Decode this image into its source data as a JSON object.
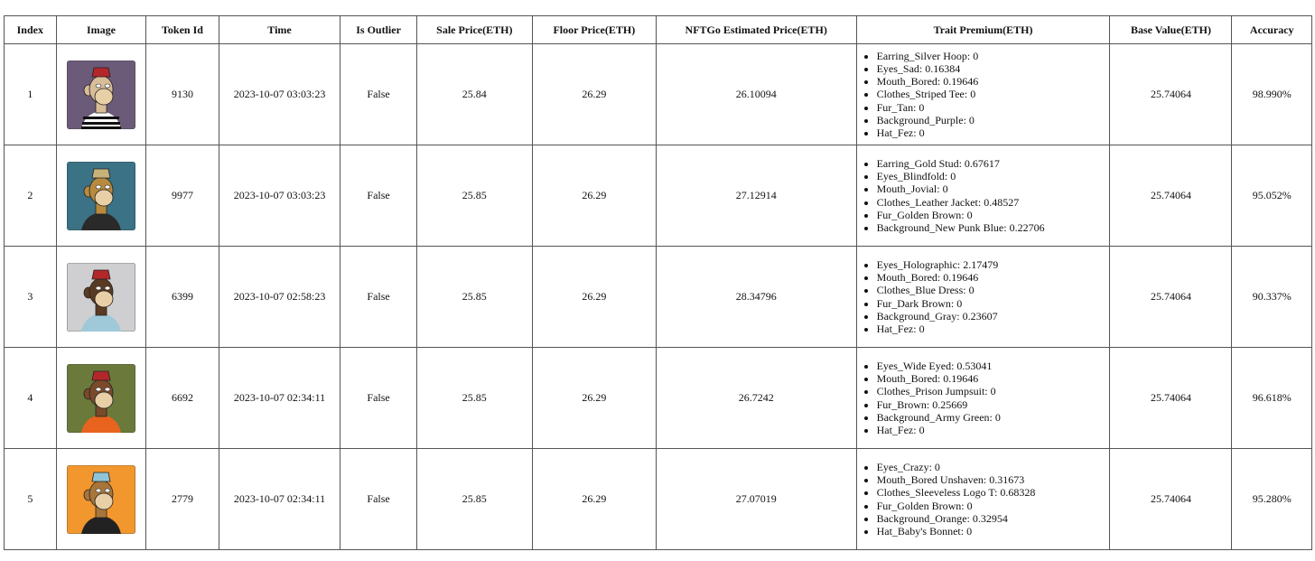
{
  "columns": [
    "Index",
    "Image",
    "Token Id",
    "Time",
    "Is Outlier",
    "Sale Price(ETH)",
    "Floor Price(ETH)",
    "NFTGo Estimated Price(ETH)",
    "Trait Premium(ETH)",
    "Base Value(ETH)",
    "Accuracy"
  ],
  "rows": [
    {
      "index": "1",
      "image": {
        "background": "#6b5a78",
        "fur": "#d9bd98",
        "hat": "#b3272a",
        "clothes": "stripes"
      },
      "token_id": "9130",
      "time": "2023-10-07 03:03:23",
      "is_outlier": "False",
      "sale_price": "25.84",
      "floor_price": "26.29",
      "estimated_price": "26.10094",
      "traits": [
        "Earring_Silver Hoop: 0",
        "Eyes_Sad: 0.16384",
        "Mouth_Bored: 0.19646",
        "Clothes_Striped Tee: 0",
        "Fur_Tan: 0",
        "Background_Purple: 0",
        "Hat_Fez: 0"
      ],
      "base_value": "25.74064",
      "accuracy": "98.990%"
    },
    {
      "index": "2",
      "image": {
        "background": "#3b7285",
        "fur": "#b88a3e",
        "hat": "#c9b27a",
        "clothes": "#2a2a2a"
      },
      "token_id": "9977",
      "time": "2023-10-07 03:03:23",
      "is_outlier": "False",
      "sale_price": "25.85",
      "floor_price": "26.29",
      "estimated_price": "27.12914",
      "traits": [
        "Earring_Gold Stud: 0.67617",
        "Eyes_Blindfold: 0",
        "Mouth_Jovial: 0",
        "Clothes_Leather Jacket: 0.48527",
        "Fur_Golden Brown: 0",
        "Background_New Punk Blue: 0.22706"
      ],
      "base_value": "25.74064",
      "accuracy": "95.052%"
    },
    {
      "index": "3",
      "image": {
        "background": "#cfcfd1",
        "fur": "#5a3a22",
        "hat": "#b3272a",
        "clothes": "#9fc8d8"
      },
      "token_id": "6399",
      "time": "2023-10-07 02:58:23",
      "is_outlier": "False",
      "sale_price": "25.85",
      "floor_price": "26.29",
      "estimated_price": "28.34796",
      "traits": [
        "Eyes_Holographic: 2.17479",
        "Mouth_Bored: 0.19646",
        "Clothes_Blue Dress: 0",
        "Fur_Dark Brown: 0",
        "Background_Gray: 0.23607",
        "Hat_Fez: 0"
      ],
      "base_value": "25.74064",
      "accuracy": "90.337%"
    },
    {
      "index": "4",
      "image": {
        "background": "#6b7a3a",
        "fur": "#7a4a2a",
        "hat": "#b3272a",
        "clothes": "#e8641e"
      },
      "token_id": "6692",
      "time": "2023-10-07 02:34:11",
      "is_outlier": "False",
      "sale_price": "25.85",
      "floor_price": "26.29",
      "estimated_price": "26.7242",
      "traits": [
        "Eyes_Wide Eyed: 0.53041",
        "Mouth_Bored: 0.19646",
        "Clothes_Prison Jumpsuit: 0",
        "Fur_Brown: 0.25669",
        "Background_Army Green: 0",
        "Hat_Fez: 0"
      ],
      "base_value": "25.74064",
      "accuracy": "96.618%"
    },
    {
      "index": "5",
      "image": {
        "background": "#f2972e",
        "fur": "#a8763a",
        "hat": "#8fc3d8",
        "clothes": "#222222"
      },
      "token_id": "2779",
      "time": "2023-10-07 02:34:11",
      "is_outlier": "False",
      "sale_price": "25.85",
      "floor_price": "26.29",
      "estimated_price": "27.07019",
      "traits": [
        "Eyes_Crazy: 0",
        "Mouth_Bored Unshaven: 0.31673",
        "Clothes_Sleeveless Logo T: 0.68328",
        "Fur_Golden Brown: 0",
        "Background_Orange: 0.32954",
        "Hat_Baby's Bonnet: 0"
      ],
      "base_value": "25.74064",
      "accuracy": "95.280%"
    }
  ]
}
